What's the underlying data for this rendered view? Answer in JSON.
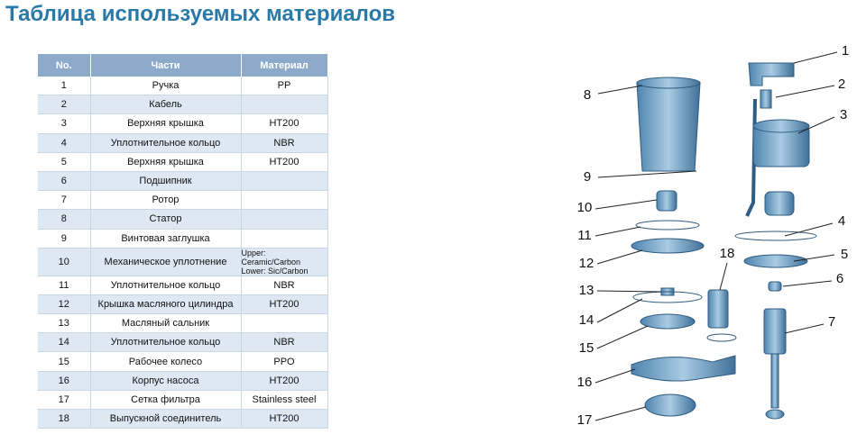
{
  "header": {
    "title": "Таблица используемых материалов"
  },
  "table": {
    "columns": [
      "No.",
      "Части",
      "Материал"
    ],
    "rows": [
      {
        "no": "1",
        "part": "Ручка",
        "material": "PP"
      },
      {
        "no": "2",
        "part": "Кабель"
      },
      {
        "no": "3",
        "part": "Верхняя крышка",
        "material": "HT200"
      },
      {
        "no": "4",
        "part": "Уплотнительное кольцо",
        "material": "NBR"
      },
      {
        "no": "5",
        "part": "Верхняя крышка",
        "material": "HT200"
      },
      {
        "no": "6",
        "part": "Подшипник"
      },
      {
        "no": "7",
        "part": "Ротор"
      },
      {
        "no": "8",
        "part": "Статор"
      },
      {
        "no": "9",
        "part": "Винтовая заглушка"
      },
      {
        "no": "10",
        "part": "Механическое уплотнение",
        "material": [
          "Upper: Ceramic/Carbon",
          "Lower: Sic/Carbon"
        ]
      },
      {
        "no": "11",
        "part": "Уплотнительное кольцо",
        "material": "NBR"
      },
      {
        "no": "12",
        "part": "Крышка масляного цилиндра",
        "material": "HT200"
      },
      {
        "no": "13",
        "part": "Масляный сальник"
      },
      {
        "no": "14",
        "part": "Уплотнительное кольцо",
        "material": "NBR"
      },
      {
        "no": "15",
        "part": "Рабочее колесо",
        "material": "PPO"
      },
      {
        "no": "16",
        "part": "Корпус насоса",
        "material": "HT200"
      },
      {
        "no": "17",
        "part": "Сетка фильтра",
        "material": "Stainless steel"
      },
      {
        "no": "18",
        "part": "Выпускной соединитель",
        "material": "HT200"
      }
    ]
  },
  "diagram": {
    "labels": [
      "1",
      "2",
      "3",
      "4",
      "5",
      "6",
      "7",
      "8",
      "9",
      "10",
      "11",
      "12",
      "13",
      "14",
      "15",
      "16",
      "17",
      "18"
    ]
  }
}
